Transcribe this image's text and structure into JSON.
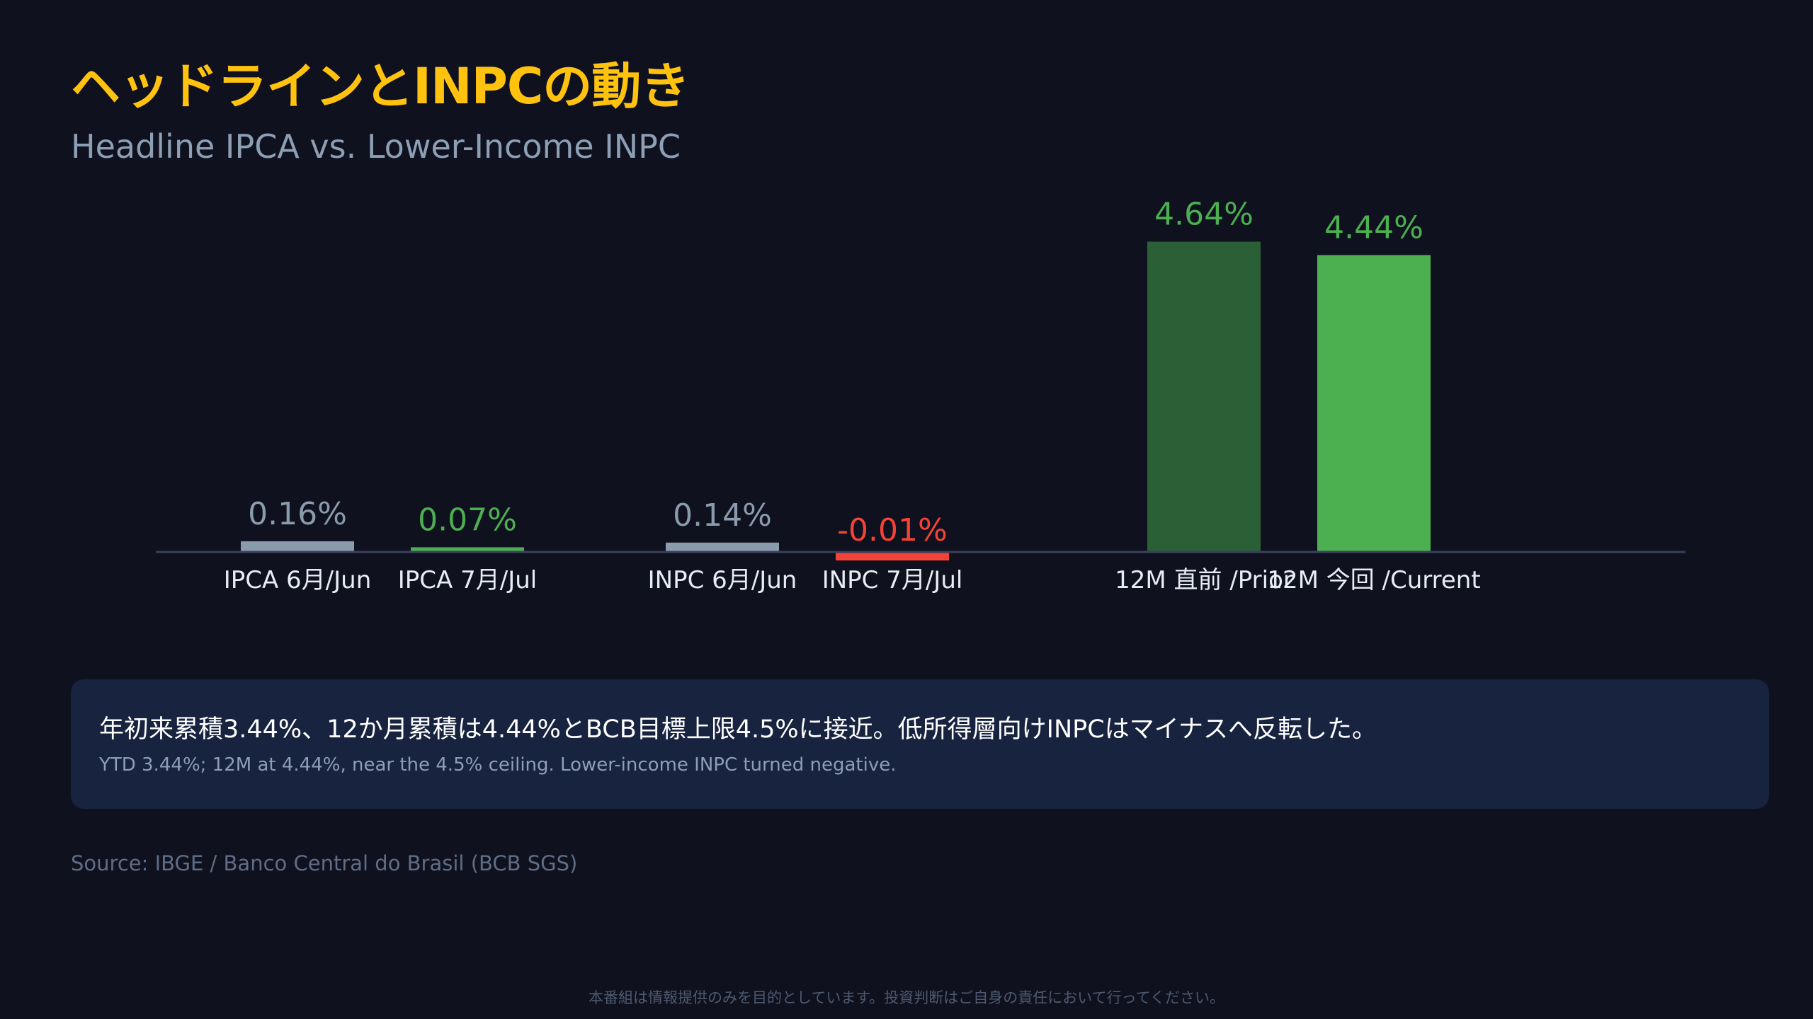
{
  "title": "ヘッドラインとINPCの動き",
  "subtitle": "Headline IPCA vs. Lower-Income INPC",
  "colors": {
    "background": "#0f111e",
    "title": "#ffc20e",
    "prior_bar": "#8a9bac",
    "positive_bar": "#4caf50",
    "negative_bar": "#f44336",
    "dark_green_bar": "#2b5f35",
    "note_bg": "#17233f"
  },
  "chart_data": {
    "type": "bar",
    "title": "",
    "categories": [
      "IPCA 6月/Jun",
      "IPCA 7月/Jul",
      "INPC 6月/Jun",
      "INPC 7月/Jul",
      "12M 直前 /Prior",
      "12M 今回 /Current"
    ],
    "values": [
      0.16,
      0.07,
      0.14,
      -0.01,
      4.64,
      4.44
    ],
    "value_labels": [
      "0.16%",
      "0.07%",
      "0.14%",
      "-0.01%",
      "4.64%",
      "4.44%"
    ],
    "bar_colors": [
      "#8a9bac",
      "#4caf50",
      "#8a9bac",
      "#f44336",
      "#2b5f35",
      "#4caf50"
    ],
    "label_colors": [
      "#8a9bac",
      "#4caf50",
      "#8a9bac",
      "#f44336",
      "#4caf50",
      "#4caf50"
    ],
    "groups": [
      {
        "name": "IPCA",
        "indices": [
          0,
          1
        ]
      },
      {
        "name": "INPC",
        "indices": [
          2,
          3
        ]
      },
      {
        "name": "12M",
        "indices": [
          4,
          5
        ]
      }
    ],
    "xlabel": "",
    "ylabel": "",
    "grid": false,
    "legend": "none"
  },
  "note": {
    "main": "年初来累積3.44%、12か月累積は4.44%とBCB目標上限4.5%に接近。低所得層向けINPCはマイナスへ反転した。",
    "sub": "YTD 3.44%; 12M at 4.44%, near the 4.5% ceiling. Lower-income INPC turned negative."
  },
  "source": "Source: IBGE / Banco Central do Brasil (BCB SGS)",
  "disclaimer": "本番組は情報提供のみを目的としています。投資判断はご自身の責任において行ってください。"
}
